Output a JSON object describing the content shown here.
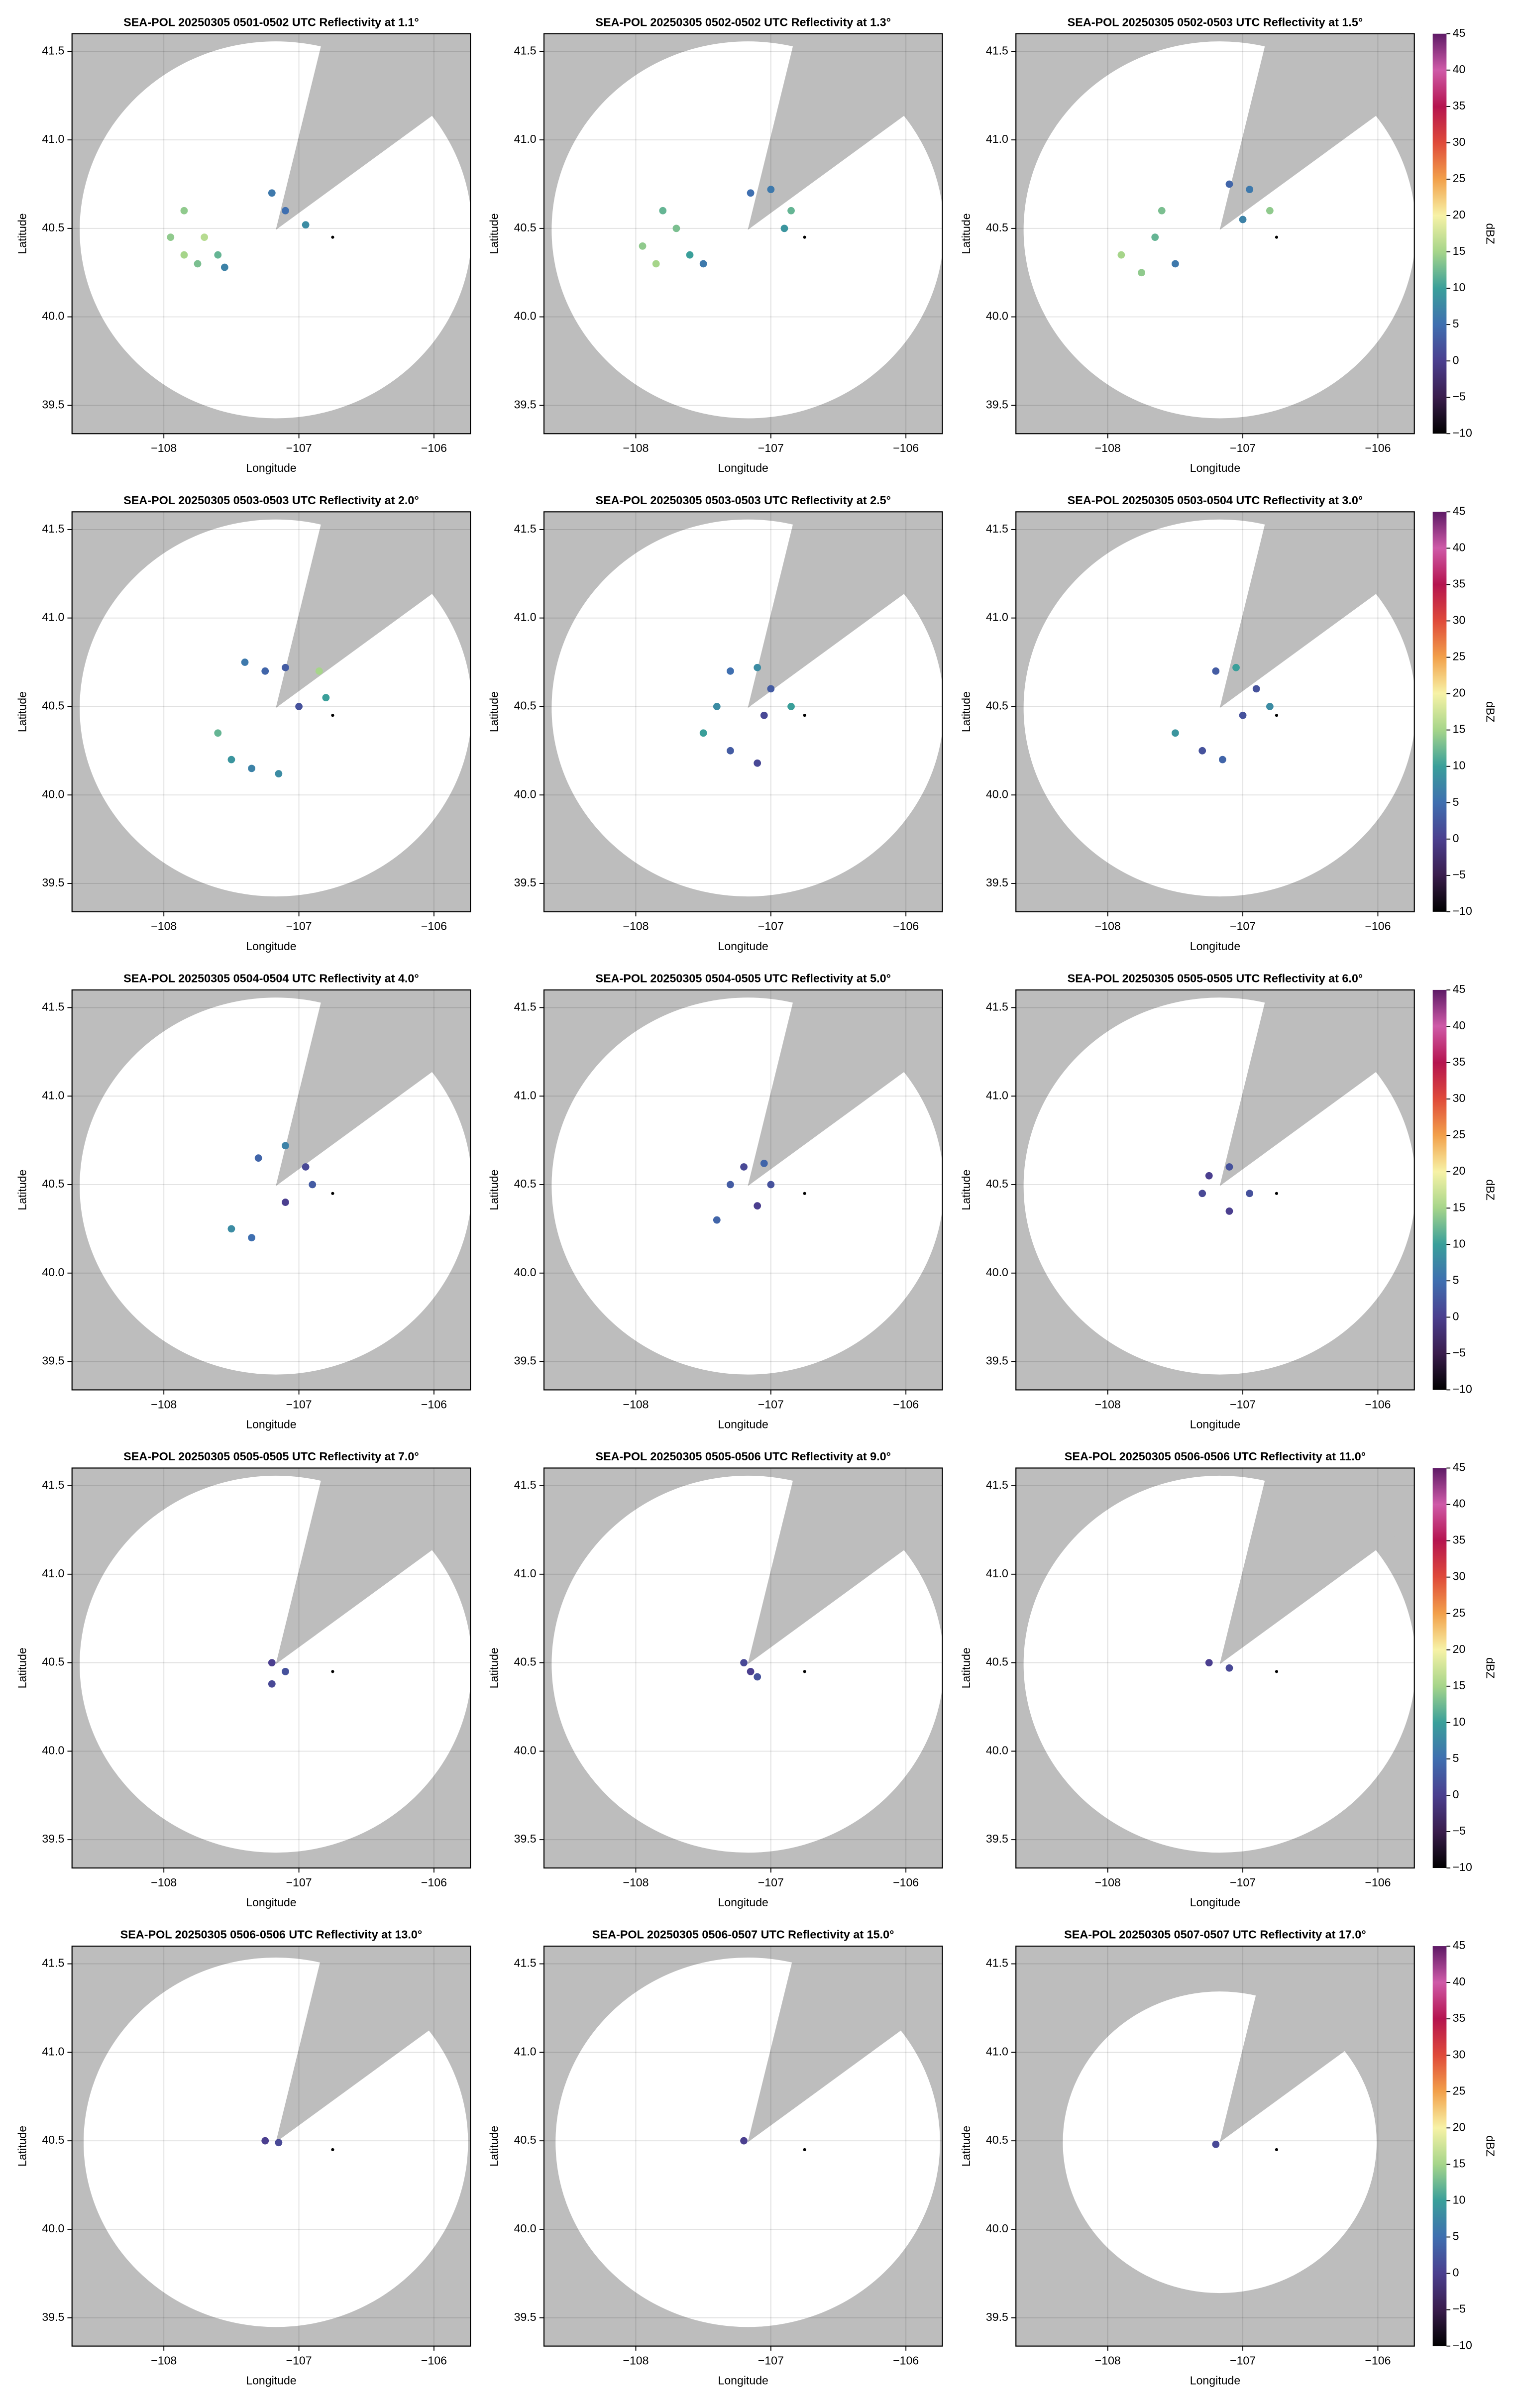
{
  "colorscale": {
    "lim": [
      -10,
      45
    ],
    "colors": [
      "#000000",
      "#3a1d4d",
      "#4b3f8f",
      "#3f6fb0",
      "#3a9f9a",
      "#a6d58a",
      "#f7f2a6",
      "#f2a04a",
      "#df4a3a",
      "#b5144f",
      "#cf5aa8",
      "#5e1a66"
    ]
  },
  "chart_data": [
    {
      "type": "radar",
      "title": "SEA-POL 20250305 0501-0502 UTC Reflectivity at 1.1°",
      "xlabel": "Longitude",
      "ylabel": "Latitude",
      "xlim": [
        -108.68,
        -105.73
      ],
      "ylim": [
        39.34,
        41.6
      ],
      "xticks": [
        {
          "value": -108,
          "label": "−108"
        },
        {
          "value": -107,
          "label": "−107"
        },
        {
          "value": -106,
          "label": "−106"
        }
      ],
      "yticks": [
        39.5,
        {
          "value": 40,
          "label": "40.0"
        },
        40.5,
        {
          "value": 41,
          "label": "41.0"
        },
        41.5
      ],
      "grid": true,
      "site": [
        -106.75,
        40.45
      ],
      "echoes": {
        "x": [
          -107.95,
          -107.85,
          -107.75,
          -107.7,
          -107.6,
          -107.55,
          -107.85,
          -107.2,
          -107.1,
          -106.95
        ],
        "y": [
          40.45,
          40.35,
          40.3,
          40.45,
          40.35,
          40.28,
          40.6,
          40.7,
          40.6,
          40.52
        ],
        "values": [
          14,
          15,
          13,
          16,
          12,
          7,
          14,
          6,
          5,
          8
        ]
      }
    },
    {
      "type": "radar",
      "title": "SEA-POL 20250305 0502-0502 UTC Reflectivity at 1.3°",
      "xlabel": "Longitude",
      "ylabel": "Latitude",
      "xlim": [
        -108.68,
        -105.73
      ],
      "ylim": [
        39.34,
        41.6
      ],
      "xticks": [
        {
          "value": -108,
          "label": "−108"
        },
        {
          "value": -107,
          "label": "−107"
        },
        {
          "value": -106,
          "label": "−106"
        }
      ],
      "yticks": [
        39.5,
        {
          "value": 40,
          "label": "40.0"
        },
        40.5,
        {
          "value": 41,
          "label": "41.0"
        },
        41.5
      ],
      "grid": true,
      "site": [
        -106.75,
        40.45
      ],
      "echoes": {
        "x": [
          -107.95,
          -107.85,
          -107.7,
          -107.6,
          -107.5,
          -107.8,
          -107.15,
          -107.0,
          -106.85,
          -106.9
        ],
        "y": [
          40.4,
          40.3,
          40.5,
          40.35,
          40.3,
          40.6,
          40.7,
          40.72,
          40.6,
          40.5
        ],
        "values": [
          14,
          15,
          13,
          10,
          6,
          12,
          5,
          6,
          12,
          9
        ]
      }
    },
    {
      "type": "radar",
      "title": "SEA-POL 20250305 0502-0503 UTC Reflectivity at 1.5°",
      "xlabel": "Longitude",
      "ylabel": "Latitude",
      "xlim": [
        -108.68,
        -105.73
      ],
      "ylim": [
        39.34,
        41.6
      ],
      "xticks": [
        {
          "value": -108,
          "label": "−108"
        },
        {
          "value": -107,
          "label": "−107"
        },
        {
          "value": -106,
          "label": "−106"
        }
      ],
      "yticks": [
        39.5,
        {
          "value": 40,
          "label": "40.0"
        },
        40.5,
        {
          "value": 41,
          "label": "41.0"
        },
        41.5
      ],
      "grid": true,
      "site": [
        -106.75,
        40.45
      ],
      "echoes": {
        "x": [
          -107.9,
          -107.75,
          -107.65,
          -107.5,
          -107.6,
          -107.1,
          -106.95,
          -106.8,
          -107.0
        ],
        "y": [
          40.35,
          40.25,
          40.45,
          40.3,
          40.6,
          40.75,
          40.72,
          40.6,
          40.55
        ],
        "values": [
          15,
          14,
          12,
          6,
          13,
          4,
          6,
          14,
          7
        ]
      },
      "colorbar": {
        "label": "dBZ",
        "ticks": [
          {
            "value": -10,
            "label": "−10"
          },
          {
            "value": -5,
            "label": "−5"
          },
          0,
          5,
          10,
          15,
          20,
          25,
          30,
          35,
          40,
          45
        ]
      }
    },
    {
      "type": "radar",
      "title": "SEA-POL 20250305 0503-0503 UTC Reflectivity at 2.0°",
      "xlabel": "Longitude",
      "ylabel": "Latitude",
      "xlim": [
        -108.68,
        -105.73
      ],
      "ylim": [
        39.34,
        41.6
      ],
      "xticks": [
        {
          "value": -108,
          "label": "−108"
        },
        {
          "value": -107,
          "label": "−107"
        },
        {
          "value": -106,
          "label": "−106"
        }
      ],
      "yticks": [
        39.5,
        {
          "value": 40,
          "label": "40.0"
        },
        40.5,
        {
          "value": 41,
          "label": "41.0"
        },
        41.5
      ],
      "grid": true,
      "site": [
        -106.75,
        40.45
      ],
      "echoes": {
        "x": [
          -107.4,
          -107.25,
          -107.1,
          -106.85,
          -106.8,
          -107.0,
          -107.6,
          -107.5,
          -107.35,
          -107.15
        ],
        "y": [
          40.75,
          40.7,
          40.72,
          40.7,
          40.55,
          40.5,
          40.35,
          40.2,
          40.15,
          40.12
        ],
        "values": [
          6,
          4,
          3,
          15,
          10,
          2,
          12,
          9,
          7,
          8
        ]
      }
    },
    {
      "type": "radar",
      "title": "SEA-POL 20250305 0503-0503 UTC Reflectivity at 2.5°",
      "xlabel": "Longitude",
      "ylabel": "Latitude",
      "xlim": [
        -108.68,
        -105.73
      ],
      "ylim": [
        39.34,
        41.6
      ],
      "xticks": [
        {
          "value": -108,
          "label": "−108"
        },
        {
          "value": -107,
          "label": "−107"
        },
        {
          "value": -106,
          "label": "−106"
        }
      ],
      "yticks": [
        39.5,
        {
          "value": 40,
          "label": "40.0"
        },
        40.5,
        {
          "value": 41,
          "label": "41.0"
        },
        41.5
      ],
      "grid": true,
      "site": [
        -106.75,
        40.45
      ],
      "echoes": {
        "x": [
          -107.3,
          -107.1,
          -107.0,
          -106.85,
          -107.05,
          -107.5,
          -107.3,
          -107.1,
          -107.4
        ],
        "y": [
          40.7,
          40.72,
          40.6,
          40.5,
          40.45,
          40.35,
          40.25,
          40.18,
          40.5
        ],
        "values": [
          5,
          8,
          3,
          10,
          1,
          10,
          3,
          1,
          8
        ]
      }
    },
    {
      "type": "radar",
      "title": "SEA-POL 20250305 0503-0504 UTC Reflectivity at 3.0°",
      "xlabel": "Longitude",
      "ylabel": "Latitude",
      "xlim": [
        -108.68,
        -105.73
      ],
      "ylim": [
        39.34,
        41.6
      ],
      "xticks": [
        {
          "value": -108,
          "label": "−108"
        },
        {
          "value": -107,
          "label": "−107"
        },
        {
          "value": -106,
          "label": "−106"
        }
      ],
      "yticks": [
        39.5,
        {
          "value": 40,
          "label": "40.0"
        },
        40.5,
        {
          "value": 41,
          "label": "41.0"
        },
        41.5
      ],
      "grid": true,
      "site": [
        -106.75,
        40.45
      ],
      "echoes": {
        "x": [
          -107.2,
          -107.05,
          -106.9,
          -106.8,
          -107.0,
          -107.5,
          -107.3,
          -107.15
        ],
        "y": [
          40.7,
          40.72,
          40.6,
          40.5,
          40.45,
          40.35,
          40.25,
          40.2
        ],
        "values": [
          3,
          10,
          2,
          8,
          2,
          9,
          2,
          4
        ]
      },
      "colorbar": {
        "label": "dBZ",
        "ticks": [
          {
            "value": -10,
            "label": "−10"
          },
          {
            "value": -5,
            "label": "−5"
          },
          0,
          5,
          10,
          15,
          20,
          25,
          30,
          35,
          40,
          45
        ]
      }
    },
    {
      "type": "radar",
      "title": "SEA-POL 20250305 0504-0504 UTC Reflectivity at 4.0°",
      "xlabel": "Longitude",
      "ylabel": "Latitude",
      "xlim": [
        -108.68,
        -105.73
      ],
      "ylim": [
        39.34,
        41.6
      ],
      "xticks": [
        {
          "value": -108,
          "label": "−108"
        },
        {
          "value": -107,
          "label": "−107"
        },
        {
          "value": -106,
          "label": "−106"
        }
      ],
      "yticks": [
        39.5,
        {
          "value": 40,
          "label": "40.0"
        },
        40.5,
        {
          "value": 41,
          "label": "41.0"
        },
        41.5
      ],
      "grid": true,
      "site": [
        -106.75,
        40.45
      ],
      "echoes": {
        "x": [
          -107.3,
          -107.1,
          -106.95,
          -106.9,
          -107.1,
          -107.5,
          -107.35
        ],
        "y": [
          40.65,
          40.72,
          40.6,
          40.5,
          40.4,
          40.25,
          40.2
        ],
        "values": [
          4,
          7,
          1,
          3,
          0,
          8,
          5
        ]
      }
    },
    {
      "type": "radar",
      "title": "SEA-POL 20250305 0504-0505 UTC Reflectivity at 5.0°",
      "xlabel": "Longitude",
      "ylabel": "Latitude",
      "xlim": [
        -108.68,
        -105.73
      ],
      "ylim": [
        39.34,
        41.6
      ],
      "xticks": [
        {
          "value": -108,
          "label": "−108"
        },
        {
          "value": -107,
          "label": "−107"
        },
        {
          "value": -106,
          "label": "−106"
        }
      ],
      "yticks": [
        39.5,
        {
          "value": 40,
          "label": "40.0"
        },
        40.5,
        {
          "value": 41,
          "label": "41.0"
        },
        41.5
      ],
      "grid": true,
      "site": [
        -106.75,
        40.45
      ],
      "echoes": {
        "x": [
          -107.2,
          -107.05,
          -107.0,
          -107.3,
          -107.1,
          -107.4
        ],
        "y": [
          40.6,
          40.62,
          40.5,
          40.5,
          40.38,
          40.3
        ],
        "values": [
          1,
          4,
          2,
          3,
          0,
          4
        ]
      }
    },
    {
      "type": "radar",
      "title": "SEA-POL 20250305 0505-0505 UTC Reflectivity at 6.0°",
      "xlabel": "Longitude",
      "ylabel": "Latitude",
      "xlim": [
        -108.68,
        -105.73
      ],
      "ylim": [
        39.34,
        41.6
      ],
      "xticks": [
        {
          "value": -108,
          "label": "−108"
        },
        {
          "value": -107,
          "label": "−107"
        },
        {
          "value": -106,
          "label": "−106"
        }
      ],
      "yticks": [
        39.5,
        {
          "value": 40,
          "label": "40.0"
        },
        40.5,
        {
          "value": 41,
          "label": "41.0"
        },
        41.5
      ],
      "grid": true,
      "site": [
        -106.75,
        40.45
      ],
      "echoes": {
        "x": [
          -107.25,
          -107.1,
          -107.3,
          -107.1,
          -106.95
        ],
        "y": [
          40.55,
          40.6,
          40.45,
          40.35,
          40.45
        ],
        "values": [
          0,
          2,
          1,
          0,
          2
        ]
      },
      "colorbar": {
        "label": "dBZ",
        "ticks": [
          {
            "value": -10,
            "label": "−10"
          },
          {
            "value": -5,
            "label": "−5"
          },
          0,
          5,
          10,
          15,
          20,
          25,
          30,
          35,
          40,
          45
        ]
      }
    },
    {
      "type": "radar",
      "title": "SEA-POL 20250305 0505-0505 UTC Reflectivity at 7.0°",
      "xlabel": "Longitude",
      "ylabel": "Latitude",
      "xlim": [
        -108.68,
        -105.73
      ],
      "ylim": [
        39.34,
        41.6
      ],
      "xticks": [
        {
          "value": -108,
          "label": "−108"
        },
        {
          "value": -107,
          "label": "−107"
        },
        {
          "value": -106,
          "label": "−106"
        }
      ],
      "yticks": [
        39.5,
        {
          "value": 40,
          "label": "40.0"
        },
        40.5,
        {
          "value": 41,
          "label": "41.0"
        },
        41.5
      ],
      "grid": true,
      "site": [
        -106.75,
        40.45
      ],
      "echoes": {
        "x": [
          -107.2,
          -107.1,
          -107.2
        ],
        "y": [
          40.5,
          40.45,
          40.38
        ],
        "values": [
          0,
          2,
          1
        ]
      }
    },
    {
      "type": "radar",
      "title": "SEA-POL 20250305 0505-0506 UTC Reflectivity at 9.0°",
      "xlabel": "Longitude",
      "ylabel": "Latitude",
      "xlim": [
        -108.68,
        -105.73
      ],
      "ylim": [
        39.34,
        41.6
      ],
      "xticks": [
        {
          "value": -108,
          "label": "−108"
        },
        {
          "value": -107,
          "label": "−107"
        },
        {
          "value": -106,
          "label": "−106"
        }
      ],
      "yticks": [
        39.5,
        {
          "value": 40,
          "label": "40.0"
        },
        40.5,
        {
          "value": 41,
          "label": "41.0"
        },
        41.5
      ],
      "grid": true,
      "site": [
        -106.75,
        40.45
      ],
      "echoes": {
        "x": [
          -107.2,
          -107.15,
          -107.1
        ],
        "y": [
          40.5,
          40.45,
          40.42
        ],
        "values": [
          1,
          0,
          2
        ]
      }
    },
    {
      "type": "radar",
      "title": "SEA-POL 20250305 0506-0506 UTC Reflectivity at 11.0°",
      "xlabel": "Longitude",
      "ylabel": "Latitude",
      "xlim": [
        -108.68,
        -105.73
      ],
      "ylim": [
        39.34,
        41.6
      ],
      "xticks": [
        {
          "value": -108,
          "label": "−108"
        },
        {
          "value": -107,
          "label": "−107"
        },
        {
          "value": -106,
          "label": "−106"
        }
      ],
      "yticks": [
        39.5,
        {
          "value": 40,
          "label": "40.0"
        },
        40.5,
        {
          "value": 41,
          "label": "41.0"
        },
        41.5
      ],
      "grid": true,
      "site": [
        -106.75,
        40.45
      ],
      "echoes": {
        "x": [
          -107.25,
          -107.1
        ],
        "y": [
          40.5,
          40.47
        ],
        "values": [
          0,
          1
        ]
      },
      "colorbar": {
        "label": "dBZ",
        "ticks": [
          {
            "value": -10,
            "label": "−10"
          },
          {
            "value": -5,
            "label": "−5"
          },
          0,
          5,
          10,
          15,
          20,
          25,
          30,
          35,
          40,
          45
        ]
      }
    },
    {
      "type": "radar",
      "title": "SEA-POL 20250305 0506-0506 UTC Reflectivity at 13.0°",
      "xlabel": "Longitude",
      "ylabel": "Latitude",
      "xlim": [
        -108.68,
        -105.73
      ],
      "ylim": [
        39.34,
        41.6
      ],
      "xticks": [
        {
          "value": -108,
          "label": "−108"
        },
        {
          "value": -107,
          "label": "−107"
        },
        {
          "value": -106,
          "label": "−106"
        }
      ],
      "yticks": [
        39.5,
        {
          "value": 40,
          "label": "40.0"
        },
        40.5,
        {
          "value": 41,
          "label": "41.0"
        },
        41.5
      ],
      "grid": true,
      "site": [
        -106.75,
        40.45
      ],
      "echoes": {
        "x": [
          -107.25,
          -107.15
        ],
        "y": [
          40.5,
          40.49
        ],
        "values": [
          0,
          1
        ]
      }
    },
    {
      "type": "radar",
      "title": "SEA-POL 20250305 0506-0507 UTC Reflectivity at 15.0°",
      "xlabel": "Longitude",
      "ylabel": "Latitude",
      "xlim": [
        -108.68,
        -105.73
      ],
      "ylim": [
        39.34,
        41.6
      ],
      "xticks": [
        {
          "value": -108,
          "label": "−108"
        },
        {
          "value": -107,
          "label": "−107"
        },
        {
          "value": -106,
          "label": "−106"
        }
      ],
      "yticks": [
        39.5,
        {
          "value": 40,
          "label": "40.0"
        },
        40.5,
        {
          "value": 41,
          "label": "41.0"
        },
        41.5
      ],
      "grid": true,
      "site": [
        -106.75,
        40.45
      ],
      "echoes": {
        "x": [
          -107.2
        ],
        "y": [
          40.5
        ],
        "values": [
          0
        ]
      }
    },
    {
      "type": "radar",
      "title": "SEA-POL 20250305 0507-0507 UTC Reflectivity at 17.0°",
      "xlabel": "Longitude",
      "ylabel": "Latitude",
      "xlim": [
        -108.68,
        -105.73
      ],
      "ylim": [
        39.34,
        41.6
      ],
      "xticks": [
        {
          "value": -108,
          "label": "−108"
        },
        {
          "value": -107,
          "label": "−107"
        },
        {
          "value": -106,
          "label": "−106"
        }
      ],
      "yticks": [
        39.5,
        {
          "value": 40,
          "label": "40.0"
        },
        40.5,
        {
          "value": 41,
          "label": "41.0"
        },
        41.5
      ],
      "grid": true,
      "site": [
        -106.75,
        40.45
      ],
      "echoes": {
        "x": [
          -107.2
        ],
        "y": [
          40.48
        ],
        "values": [
          1
        ]
      },
      "colorbar": {
        "label": "dBZ",
        "ticks": [
          {
            "value": -10,
            "label": "−10"
          },
          {
            "value": -5,
            "label": "−5"
          },
          0,
          5,
          10,
          15,
          20,
          25,
          30,
          35,
          40,
          45
        ]
      }
    }
  ]
}
